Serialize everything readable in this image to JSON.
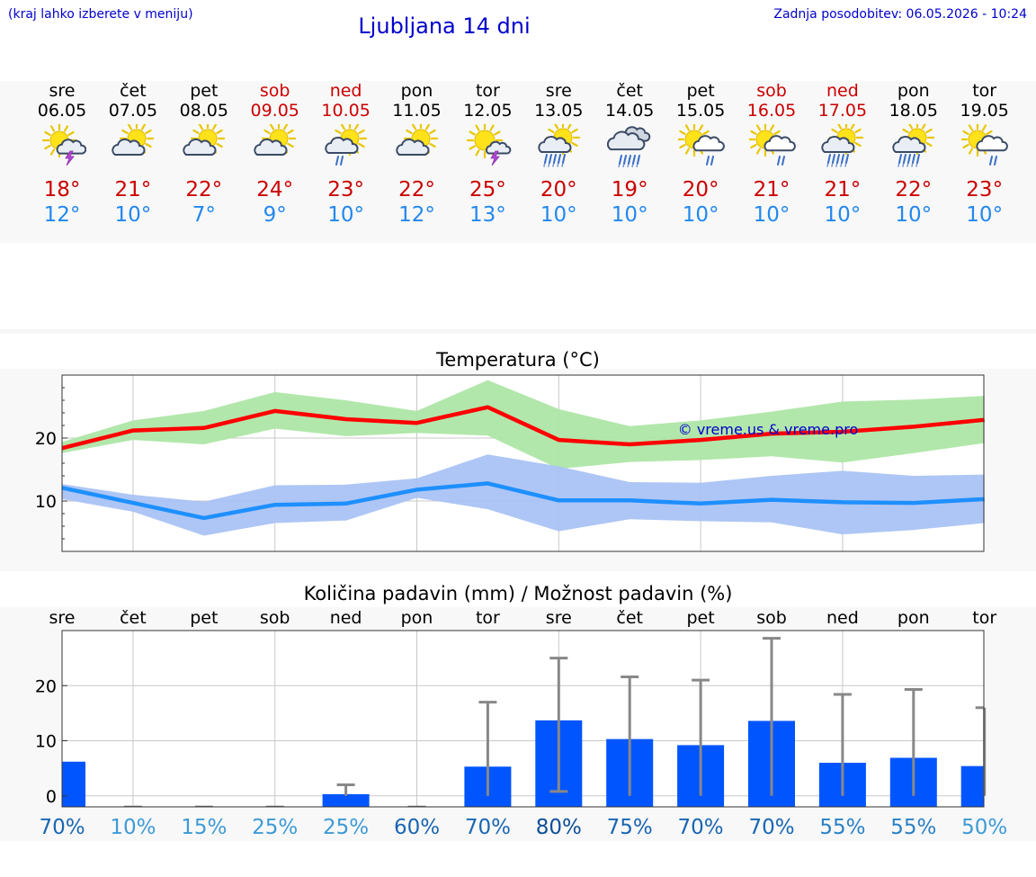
{
  "header": {
    "hint": "(kraj lahko izberete v meniju)",
    "title": "Ljubljana 14 dni",
    "updated": "Zadnja posodobitev: 06.05.2026 - 10:24"
  },
  "colors": {
    "max_temp": "#cc0000",
    "min_temp": "#2288ee",
    "max_line": "#ff0000",
    "max_band": "#aee6a6",
    "min_line": "#1e8fff",
    "min_band": "#aac3f4",
    "precip_bar": "#0055ff",
    "error_bar": "#888888"
  },
  "days": [
    {
      "name": "sre",
      "date": "06.05",
      "weekend": false,
      "icon": "partly-cloudy-thunder-icon",
      "max": "18°",
      "min": "12°"
    },
    {
      "name": "čet",
      "date": "07.05",
      "weekend": false,
      "icon": "partly-cloudy-icon",
      "max": "21°",
      "min": "10°"
    },
    {
      "name": "pet",
      "date": "08.05",
      "weekend": false,
      "icon": "partly-cloudy-icon",
      "max": "22°",
      "min": "7°"
    },
    {
      "name": "sob",
      "date": "09.05",
      "weekend": true,
      "icon": "partly-cloudy-icon",
      "max": "24°",
      "min": "9°"
    },
    {
      "name": "ned",
      "date": "10.05",
      "weekend": true,
      "icon": "partly-cloudy-rain-icon",
      "max": "23°",
      "min": "10°"
    },
    {
      "name": "pon",
      "date": "11.05",
      "weekend": false,
      "icon": "partly-cloudy-icon",
      "max": "22°",
      "min": "12°"
    },
    {
      "name": "tor",
      "date": "12.05",
      "weekend": false,
      "icon": "sun-thunder-icon",
      "max": "25°",
      "min": "13°"
    },
    {
      "name": "sre",
      "date": "13.05",
      "weekend": false,
      "icon": "partly-cloudy-heavy-rain-icon",
      "max": "20°",
      "min": "10°"
    },
    {
      "name": "čet",
      "date": "14.05",
      "weekend": false,
      "icon": "cloudy-rain-icon",
      "max": "19°",
      "min": "10°"
    },
    {
      "name": "pet",
      "date": "15.05",
      "weekend": false,
      "icon": "sun-cloud-light-rain-icon",
      "max": "20°",
      "min": "10°"
    },
    {
      "name": "sob",
      "date": "16.05",
      "weekend": true,
      "icon": "sun-cloud-light-rain-icon",
      "max": "21°",
      "min": "10°"
    },
    {
      "name": "ned",
      "date": "17.05",
      "weekend": true,
      "icon": "partly-cloudy-heavy-rain-icon",
      "max": "21°",
      "min": "10°"
    },
    {
      "name": "pon",
      "date": "18.05",
      "weekend": false,
      "icon": "partly-cloudy-heavy-rain-icon",
      "max": "22°",
      "min": "10°"
    },
    {
      "name": "tor",
      "date": "19.05",
      "weekend": false,
      "icon": "sun-cloud-light-rain-icon",
      "max": "23°",
      "min": "10°"
    }
  ],
  "chart_data": [
    {
      "type": "line",
      "title": "Temperatura (°C)",
      "watermark": "© vreme.us & vreme.pro",
      "x": [
        "06.05",
        "07.05",
        "08.05",
        "09.05",
        "10.05",
        "11.05",
        "12.05",
        "13.05",
        "14.05",
        "15.05",
        "16.05",
        "17.05",
        "18.05",
        "19.05"
      ],
      "ylim": [
        2,
        30
      ],
      "yticks": [
        10,
        20
      ],
      "grid": true,
      "series": [
        {
          "role": "max",
          "values": [
            18.4,
            21.2,
            21.6,
            24.3,
            23.0,
            22.4,
            24.9,
            19.7,
            19.0,
            19.7,
            20.7,
            21.0,
            21.8,
            22.9
          ],
          "band_low": [
            17.6,
            19.7,
            19.0,
            21.5,
            20.3,
            20.8,
            20.4,
            15.1,
            16.2,
            16.5,
            17.1,
            16.1,
            17.6,
            19.2
          ],
          "band_high": [
            19.4,
            22.8,
            24.3,
            27.3,
            26.0,
            24.3,
            29.2,
            24.6,
            21.9,
            22.8,
            24.2,
            25.8,
            26.1,
            26.7
          ]
        },
        {
          "role": "min",
          "values": [
            12.1,
            9.7,
            7.3,
            9.4,
            9.6,
            11.8,
            12.8,
            10.1,
            10.1,
            9.6,
            10.2,
            9.8,
            9.7,
            10.3
          ],
          "band_low": [
            10.3,
            8.3,
            4.5,
            6.5,
            6.9,
            10.5,
            8.7,
            5.2,
            7.1,
            6.8,
            6.6,
            4.7,
            5.4,
            6.5
          ],
          "band_high": [
            12.7,
            11.0,
            9.9,
            12.5,
            12.6,
            13.6,
            17.4,
            15.5,
            13.0,
            12.9,
            14.0,
            14.8,
            14.0,
            14.2
          ]
        }
      ]
    },
    {
      "type": "bar",
      "title": "Količina padavin (mm) / Možnost padavin (%)",
      "categories": [
        "sre",
        "čet",
        "pet",
        "sob",
        "ned",
        "pon",
        "tor",
        "sre",
        "čet",
        "pet",
        "sob",
        "ned",
        "pon",
        "tor"
      ],
      "ylim": [
        -2,
        30
      ],
      "yticks": [
        0,
        10,
        20
      ],
      "grid": true,
      "values": [
        6.2,
        0,
        0,
        0,
        0.3,
        0,
        5.3,
        13.7,
        10.3,
        9.2,
        13.6,
        6.0,
        6.9,
        5.4
      ],
      "error_high": [
        null,
        null,
        null,
        null,
        2.0,
        null,
        17.0,
        25.0,
        21.6,
        21.0,
        28.6,
        18.4,
        19.3,
        16.0
      ],
      "error_low": [
        null,
        null,
        null,
        null,
        0,
        null,
        0,
        0.8,
        0,
        0,
        0,
        0,
        0,
        0
      ],
      "probability": [
        "70%",
        "10%",
        "15%",
        "25%",
        "25%",
        "60%",
        "70%",
        "80%",
        "75%",
        "70%",
        "70%",
        "55%",
        "55%",
        "50%"
      ],
      "probability_colors": [
        "#1a66b3",
        "#3e9ad6",
        "#3e9ad6",
        "#3e9ad6",
        "#3e9ad6",
        "#1a66b3",
        "#1a66b3",
        "#0d4f99",
        "#1a66b3",
        "#1a66b3",
        "#1a66b3",
        "#2a80c4",
        "#2a80c4",
        "#3e9ad6"
      ]
    }
  ]
}
